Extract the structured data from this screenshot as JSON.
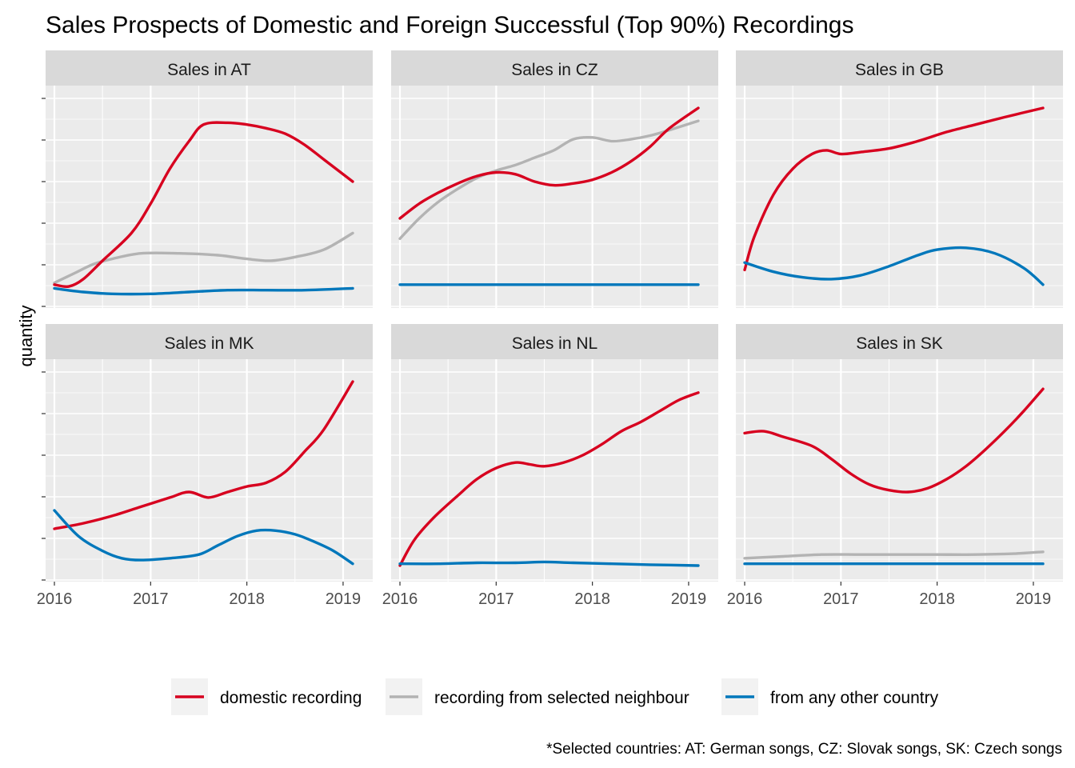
{
  "chart_data": {
    "type": "line",
    "title": "Sales Prospects of Domestic and Foreign Successful (Top 90%) Recordings",
    "ylabel": "quantity",
    "xlabel": "",
    "x_ticks": [
      "2016",
      "2017",
      "2018",
      "2019"
    ],
    "xlim": [
      2015.95,
      2019.2
    ],
    "legend_position": "bottom",
    "caption": "*Selected countries:  AT: German songs, CZ: Slovak songs, SK: Czech songs",
    "grid": true,
    "series_styles": [
      {
        "key": "domestic",
        "name": "domestic recording",
        "color": "#D7001F"
      },
      {
        "key": "neighbour",
        "name": "recording from selected neighbour",
        "color": "#B3B3B3"
      },
      {
        "key": "other",
        "name": "from any other country",
        "color": "#0077BB"
      }
    ],
    "panels": [
      {
        "label": "Sales in AT",
        "series": {
          "domestic": [
            [
              2016.0,
              0.96
            ],
            [
              2016.15,
              0.97
            ],
            [
              2016.3,
              0.93
            ],
            [
              2016.5,
              0.83
            ],
            [
              2016.8,
              0.68
            ],
            [
              2017.0,
              0.52
            ],
            [
              2017.2,
              0.33
            ],
            [
              2017.4,
              0.18
            ],
            [
              2017.55,
              0.09
            ],
            [
              2017.8,
              0.08
            ],
            [
              2018.0,
              0.09
            ],
            [
              2018.2,
              0.11
            ],
            [
              2018.4,
              0.14
            ],
            [
              2018.6,
              0.2
            ],
            [
              2018.8,
              0.28
            ],
            [
              2019.1,
              0.4
            ]
          ],
          "neighbour": [
            [
              2016.0,
              0.95
            ],
            [
              2016.2,
              0.9
            ],
            [
              2016.4,
              0.85
            ],
            [
              2016.6,
              0.82
            ],
            [
              2016.9,
              0.79
            ],
            [
              2017.3,
              0.79
            ],
            [
              2017.7,
              0.8
            ],
            [
              2018.0,
              0.82
            ],
            [
              2018.25,
              0.83
            ],
            [
              2018.5,
              0.81
            ],
            [
              2018.8,
              0.77
            ],
            [
              2019.1,
              0.68
            ]
          ],
          "other": [
            [
              2016.0,
              0.98
            ],
            [
              2016.3,
              1.0
            ],
            [
              2016.6,
              1.01
            ],
            [
              2017.0,
              1.01
            ],
            [
              2017.4,
              1.0
            ],
            [
              2017.8,
              0.99
            ],
            [
              2018.2,
              0.99
            ],
            [
              2018.6,
              0.99
            ],
            [
              2019.1,
              0.98
            ]
          ]
        }
      },
      {
        "label": "Sales in CZ",
        "series": {
          "domestic": [
            [
              2016.0,
              0.6
            ],
            [
              2016.2,
              0.52
            ],
            [
              2016.4,
              0.46
            ],
            [
              2016.6,
              0.41
            ],
            [
              2016.8,
              0.37
            ],
            [
              2017.0,
              0.35
            ],
            [
              2017.2,
              0.36
            ],
            [
              2017.4,
              0.4
            ],
            [
              2017.6,
              0.42
            ],
            [
              2017.8,
              0.41
            ],
            [
              2018.0,
              0.39
            ],
            [
              2018.2,
              0.35
            ],
            [
              2018.4,
              0.29
            ],
            [
              2018.6,
              0.21
            ],
            [
              2018.8,
              0.11
            ],
            [
              2019.1,
              0.0
            ]
          ],
          "neighbour": [
            [
              2016.0,
              0.71
            ],
            [
              2016.2,
              0.6
            ],
            [
              2016.4,
              0.51
            ],
            [
              2016.6,
              0.44
            ],
            [
              2016.8,
              0.38
            ],
            [
              2017.0,
              0.34
            ],
            [
              2017.2,
              0.31
            ],
            [
              2017.4,
              0.27
            ],
            [
              2017.6,
              0.23
            ],
            [
              2017.8,
              0.17
            ],
            [
              2018.0,
              0.16
            ],
            [
              2018.2,
              0.18
            ],
            [
              2018.4,
              0.17
            ],
            [
              2018.6,
              0.15
            ],
            [
              2018.8,
              0.12
            ],
            [
              2019.1,
              0.07
            ]
          ],
          "other": [
            [
              2016.0,
              0.96
            ],
            [
              2016.5,
              0.96
            ],
            [
              2017.0,
              0.96
            ],
            [
              2017.5,
              0.96
            ],
            [
              2018.0,
              0.96
            ],
            [
              2018.5,
              0.96
            ],
            [
              2019.1,
              0.96
            ]
          ]
        }
      },
      {
        "label": "Sales in GB",
        "series": {
          "domestic": [
            [
              2016.0,
              0.88
            ],
            [
              2016.1,
              0.7
            ],
            [
              2016.3,
              0.47
            ],
            [
              2016.5,
              0.33
            ],
            [
              2016.7,
              0.25
            ],
            [
              2016.85,
              0.23
            ],
            [
              2017.0,
              0.25
            ],
            [
              2017.2,
              0.24
            ],
            [
              2017.5,
              0.22
            ],
            [
              2017.8,
              0.18
            ],
            [
              2018.1,
              0.13
            ],
            [
              2018.4,
              0.09
            ],
            [
              2018.7,
              0.05
            ],
            [
              2019.1,
              0.0
            ]
          ],
          "other": [
            [
              2016.0,
              0.84
            ],
            [
              2016.3,
              0.89
            ],
            [
              2016.6,
              0.92
            ],
            [
              2016.9,
              0.93
            ],
            [
              2017.2,
              0.91
            ],
            [
              2017.5,
              0.86
            ],
            [
              2017.8,
              0.8
            ],
            [
              2018.0,
              0.77
            ],
            [
              2018.3,
              0.76
            ],
            [
              2018.6,
              0.79
            ],
            [
              2018.9,
              0.87
            ],
            [
              2019.1,
              0.96
            ]
          ]
        }
      },
      {
        "label": "Sales in MK",
        "series": {
          "domestic": [
            [
              2016.0,
              0.8
            ],
            [
              2016.3,
              0.77
            ],
            [
              2016.6,
              0.73
            ],
            [
              2016.9,
              0.68
            ],
            [
              2017.2,
              0.63
            ],
            [
              2017.4,
              0.6
            ],
            [
              2017.6,
              0.63
            ],
            [
              2017.8,
              0.6
            ],
            [
              2018.0,
              0.57
            ],
            [
              2018.2,
              0.55
            ],
            [
              2018.4,
              0.49
            ],
            [
              2018.6,
              0.38
            ],
            [
              2018.8,
              0.26
            ],
            [
              2019.1,
              0.0
            ]
          ],
          "other": [
            [
              2016.0,
              0.7
            ],
            [
              2016.25,
              0.84
            ],
            [
              2016.5,
              0.92
            ],
            [
              2016.7,
              0.96
            ],
            [
              2016.9,
              0.97
            ],
            [
              2017.2,
              0.96
            ],
            [
              2017.5,
              0.94
            ],
            [
              2017.7,
              0.89
            ],
            [
              2017.9,
              0.84
            ],
            [
              2018.1,
              0.81
            ],
            [
              2018.3,
              0.81
            ],
            [
              2018.5,
              0.83
            ],
            [
              2018.7,
              0.87
            ],
            [
              2018.9,
              0.92
            ],
            [
              2019.1,
              0.99
            ]
          ]
        }
      },
      {
        "label": "Sales in NL",
        "series": {
          "domestic": [
            [
              2016.0,
              1.0
            ],
            [
              2016.15,
              0.86
            ],
            [
              2016.35,
              0.74
            ],
            [
              2016.6,
              0.62
            ],
            [
              2016.8,
              0.53
            ],
            [
              2017.0,
              0.47
            ],
            [
              2017.2,
              0.44
            ],
            [
              2017.35,
              0.45
            ],
            [
              2017.5,
              0.46
            ],
            [
              2017.7,
              0.44
            ],
            [
              2017.9,
              0.4
            ],
            [
              2018.1,
              0.34
            ],
            [
              2018.3,
              0.27
            ],
            [
              2018.5,
              0.22
            ],
            [
              2018.7,
              0.16
            ],
            [
              2018.9,
              0.1
            ],
            [
              2019.1,
              0.06
            ]
          ],
          "other": [
            [
              2016.0,
              0.99
            ],
            [
              2016.4,
              0.99
            ],
            [
              2016.8,
              0.985
            ],
            [
              2017.2,
              0.985
            ],
            [
              2017.5,
              0.98
            ],
            [
              2017.8,
              0.985
            ],
            [
              2018.2,
              0.99
            ],
            [
              2018.6,
              0.995
            ],
            [
              2019.1,
              1.0
            ]
          ]
        }
      },
      {
        "label": "Sales in SK",
        "series": {
          "domestic": [
            [
              2016.0,
              0.28
            ],
            [
              2016.2,
              0.27
            ],
            [
              2016.4,
              0.3
            ],
            [
              2016.7,
              0.35
            ],
            [
              2016.9,
              0.42
            ],
            [
              2017.1,
              0.5
            ],
            [
              2017.3,
              0.56
            ],
            [
              2017.5,
              0.59
            ],
            [
              2017.7,
              0.6
            ],
            [
              2017.9,
              0.58
            ],
            [
              2018.1,
              0.53
            ],
            [
              2018.3,
              0.46
            ],
            [
              2018.5,
              0.37
            ],
            [
              2018.7,
              0.27
            ],
            [
              2018.9,
              0.16
            ],
            [
              2019.1,
              0.04
            ]
          ],
          "neighbour": [
            [
              2016.0,
              0.96
            ],
            [
              2016.4,
              0.95
            ],
            [
              2016.8,
              0.94
            ],
            [
              2017.2,
              0.94
            ],
            [
              2017.6,
              0.94
            ],
            [
              2018.0,
              0.94
            ],
            [
              2018.4,
              0.94
            ],
            [
              2018.8,
              0.935
            ],
            [
              2019.1,
              0.925
            ]
          ],
          "other": [
            [
              2016.0,
              0.99
            ],
            [
              2016.4,
              0.99
            ],
            [
              2016.8,
              0.99
            ],
            [
              2017.2,
              0.99
            ],
            [
              2017.6,
              0.99
            ],
            [
              2018.0,
              0.99
            ],
            [
              2018.4,
              0.99
            ],
            [
              2018.8,
              0.99
            ],
            [
              2019.1,
              0.99
            ]
          ]
        }
      }
    ]
  }
}
